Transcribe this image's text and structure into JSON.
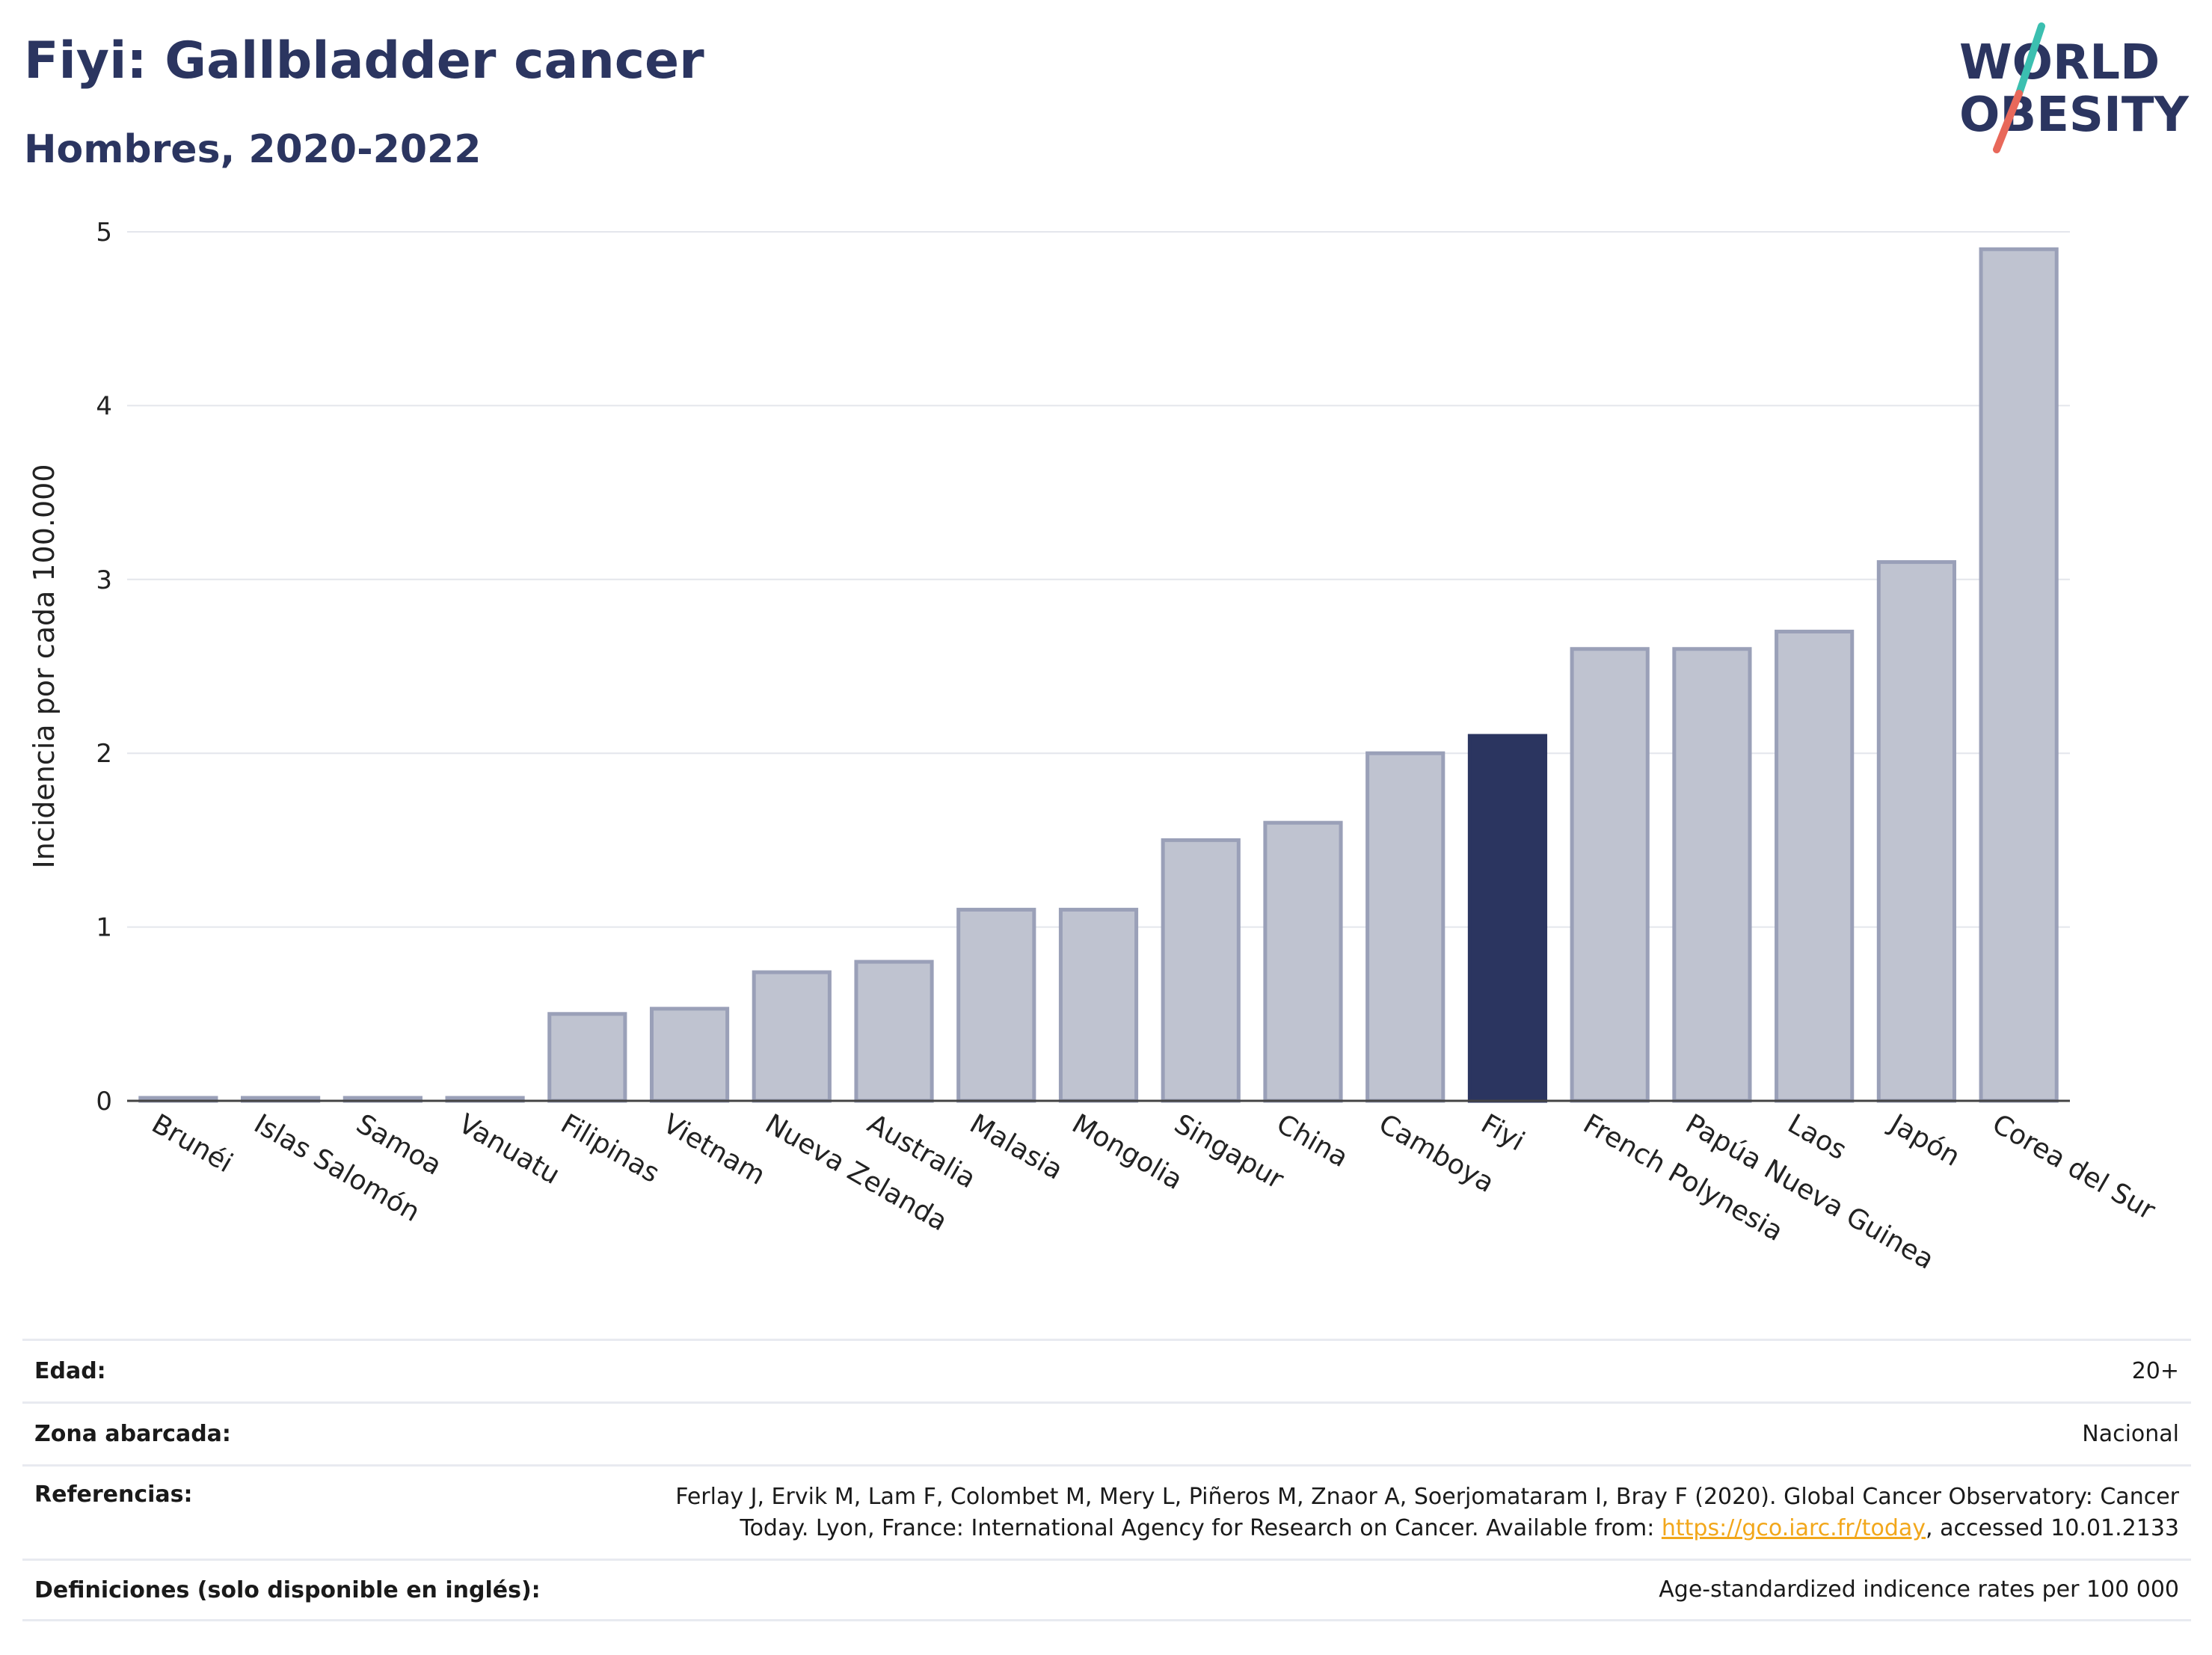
{
  "header": {
    "title": "Fiyi: Gallbladder cancer",
    "subtitle": "Hombres, 2020-2022"
  },
  "logo": {
    "line1": "WORLD",
    "line2": "OBESITY",
    "colors": {
      "text": "#2b3560",
      "slash_teal": "#3bbfb0",
      "slash_red": "#e8685a"
    }
  },
  "chart_data": {
    "type": "bar",
    "title": "",
    "xlabel": "",
    "ylabel": "Incidencia por cada 100.000",
    "ylim": [
      0,
      5
    ],
    "yticks": [
      "0",
      "1",
      "2",
      "3",
      "4",
      "5"
    ],
    "grid": true,
    "categories": [
      "Brunéi",
      "Islas Salomón",
      "Samoa",
      "Vanuatu",
      "Filipinas",
      "Vietnam",
      "Nueva Zelanda",
      "Australia",
      "Malasia",
      "Mongolia",
      "Singapur",
      "China",
      "Camboya",
      "Fiyi",
      "French Polynesia",
      "Papúa Nueva Guinea",
      "Laos",
      "Japón",
      "Corea del Sur"
    ],
    "values": [
      0.0,
      0.0,
      0.0,
      0.0,
      0.5,
      0.53,
      0.74,
      0.8,
      1.1,
      1.1,
      1.5,
      1.6,
      2.0,
      2.1,
      2.6,
      2.6,
      2.7,
      3.1,
      4.9
    ],
    "highlight": "Fiyi",
    "colors": {
      "bar": "#bfc3d0",
      "bar_border": "#9aa0b8",
      "highlight": "#2b3560"
    }
  },
  "meta": {
    "age_label": "Edad:",
    "age_value": "20+",
    "zone_label": "Zona abarcada:",
    "zone_value": "Nacional",
    "ref_label": "Referencias:",
    "ref_line1": "Ferlay J, Ervik M, Lam F, Colombet M, Mery L, Piñeros M, Znaor A, Soerjomataram I, Bray F (2020). Global Cancer Observatory: Cancer",
    "ref_line2_pre": "Today. Lyon, France: International Agency for Research on Cancer. Available from: ",
    "ref_link": "https://gco.iarc.fr/today",
    "ref_line2_post": ", accessed 10.01.2133",
    "def_label": "Definiciones (solo disponible en inglés):",
    "def_value": "Age-standardized indicence rates per 100 000"
  }
}
